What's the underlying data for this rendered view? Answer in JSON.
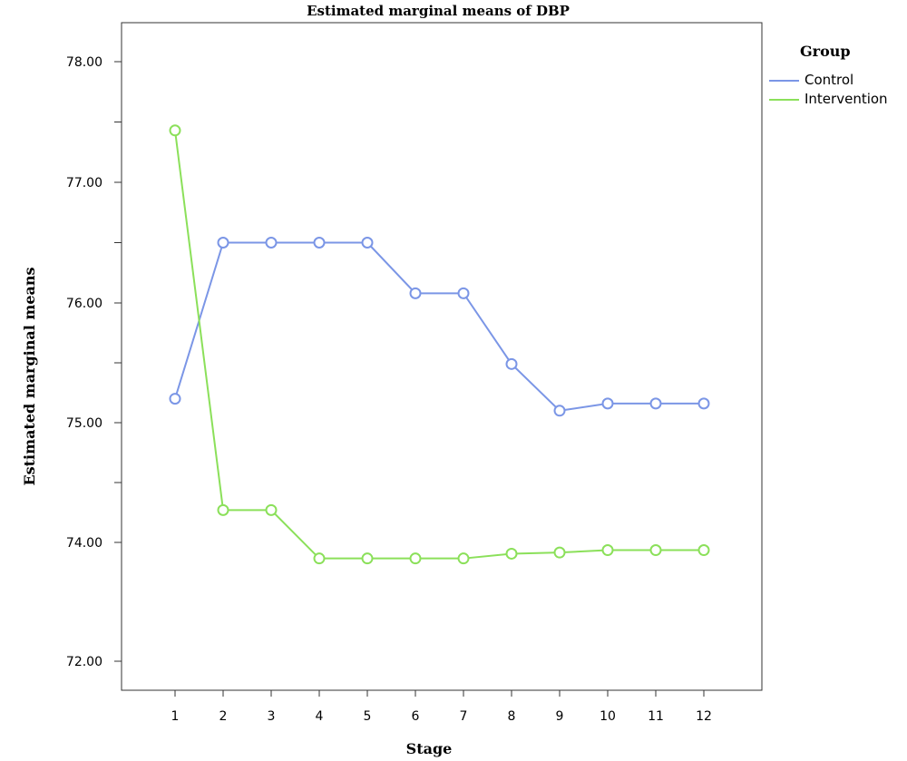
{
  "chart_data": {
    "type": "line",
    "title": "Estimated marginal means of DBP",
    "xlabel": "Stage",
    "ylabel": "Estimated marginal means",
    "categories": [
      "1",
      "2",
      "3",
      "4",
      "5",
      "6",
      "7",
      "8",
      "9",
      "10",
      "11",
      "12"
    ],
    "y_ticks": [
      "72.00",
      "74.00",
      "75.00",
      "76.00",
      "77.00",
      "78.00"
    ],
    "ylim": [
      72.0,
      78.3
    ],
    "grid": false,
    "legend_title": "Group",
    "legend_position": "top-right",
    "series": [
      {
        "name": "Control",
        "color": "#7b96e6",
        "values": [
          75.2,
          76.5,
          76.5,
          76.5,
          76.5,
          76.08,
          76.08,
          75.49,
          75.1,
          75.16,
          75.16,
          75.16
        ]
      },
      {
        "name": "Intervention",
        "color": "#8be05a",
        "values": [
          77.43,
          74.27,
          74.27,
          73.73,
          73.73,
          73.73,
          73.73,
          73.81,
          73.83,
          73.87,
          73.87,
          73.87
        ]
      }
    ]
  }
}
